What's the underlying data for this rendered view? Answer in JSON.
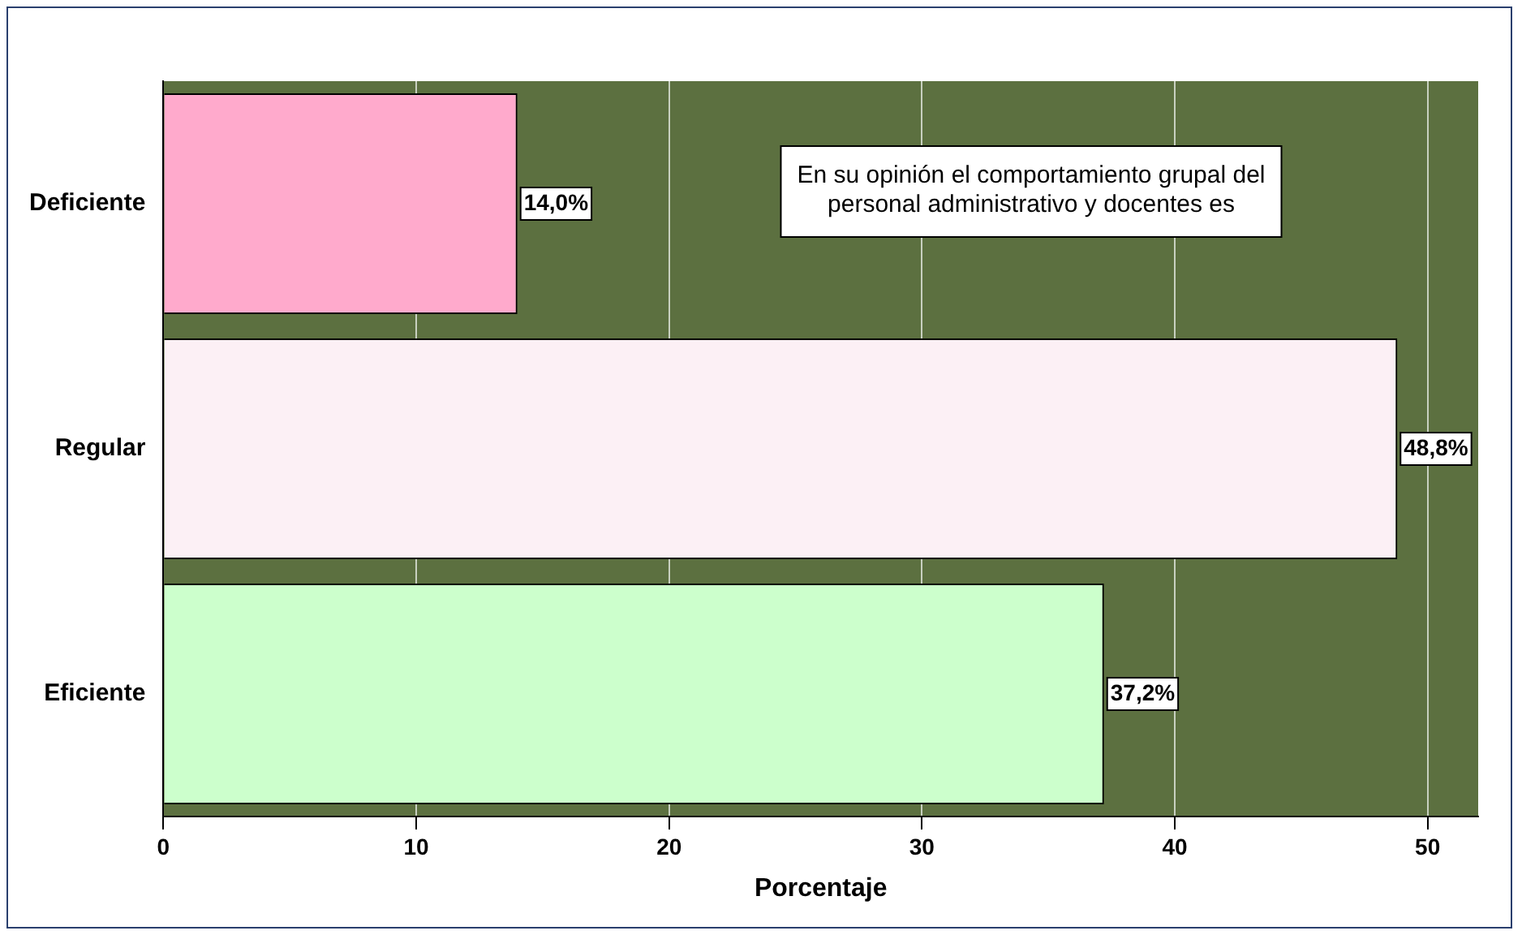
{
  "chart_data": {
    "type": "bar",
    "orientation": "horizontal",
    "xlabel": "Porcentaje",
    "categories": [
      "Deficiente",
      "Regular",
      "Eficiente"
    ],
    "values": [
      14.0,
      48.8,
      37.2
    ],
    "colors": [
      "#ffaacc",
      "#fcf0f5",
      "#ccffcc"
    ],
    "value_labels": [
      "14,0%",
      "48,8%",
      "37,2%"
    ],
    "xlim": [
      0,
      52
    ],
    "xticks": [
      0,
      10,
      20,
      30,
      40,
      50
    ],
    "grid": "x",
    "legend": false,
    "annotations": [
      "En su opinión el comportamiento grupal del\npersonal administrativo y docentes es"
    ]
  }
}
